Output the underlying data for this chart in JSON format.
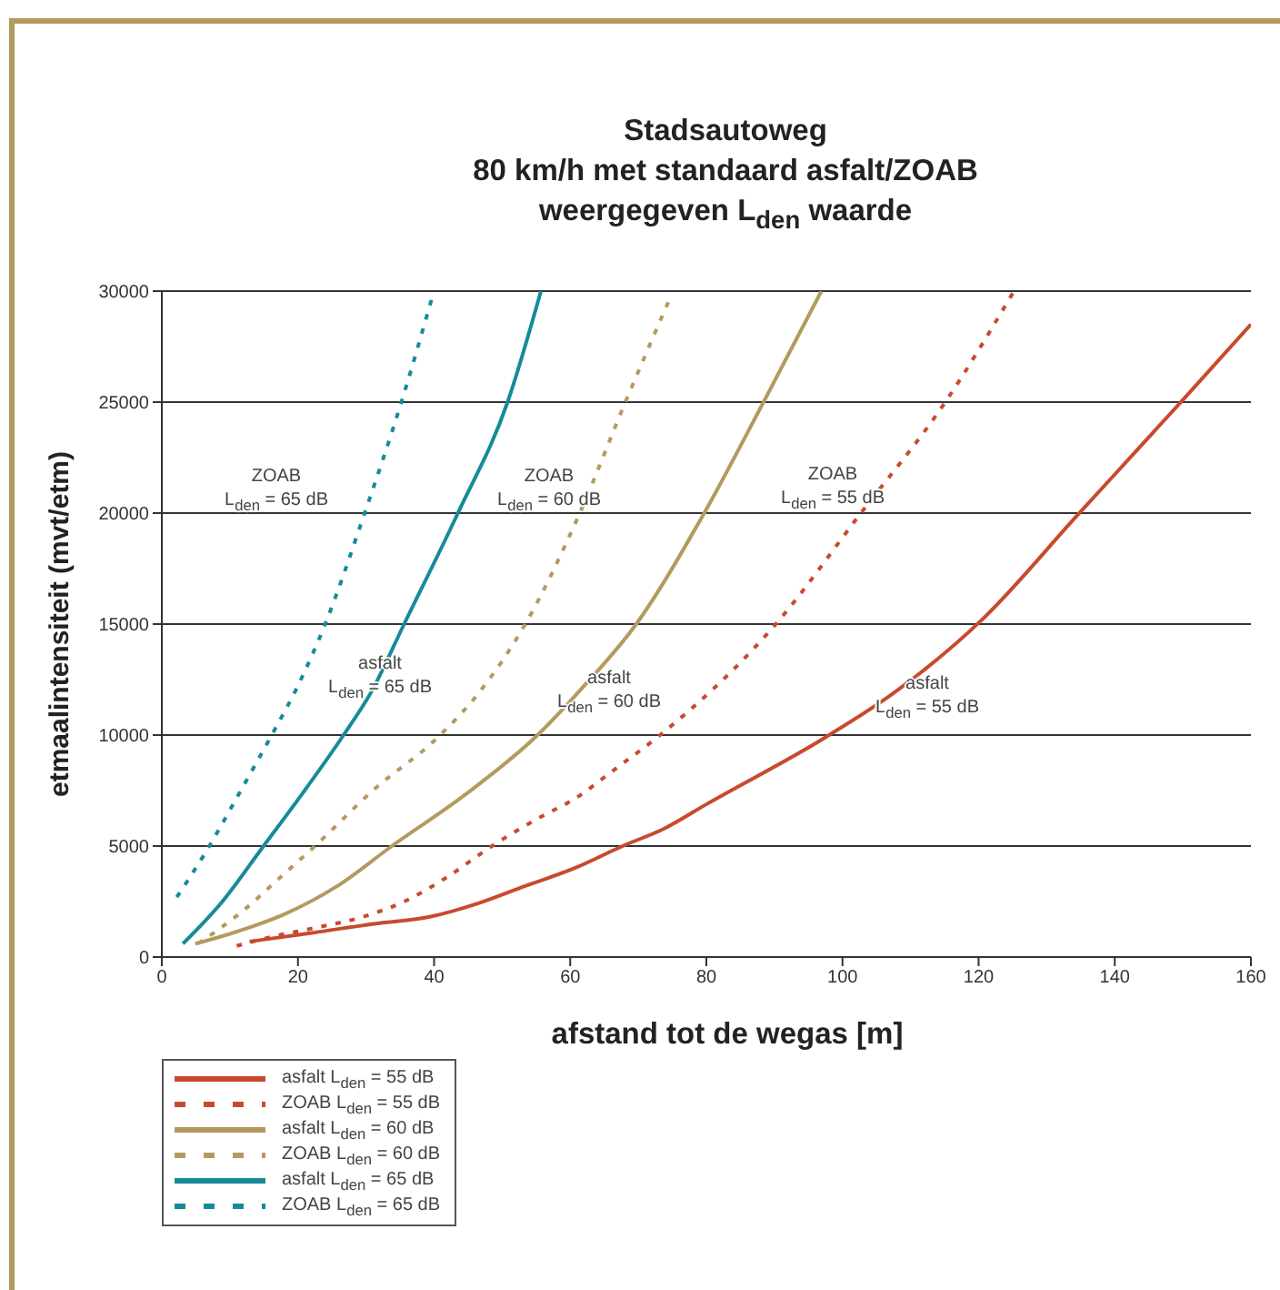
{
  "chart_data": {
    "type": "line",
    "title": "Stadsautoweg\n80 km/h met standaard asfalt/ZOAB\nweergegeven L$_{den}$ waarde",
    "xlabel": "afstand tot de wegas [m]",
    "ylabel": "etmaalintensiteit (mvt/etm)",
    "xlim": [
      0,
      160
    ],
    "xticks": [
      0,
      20,
      40,
      60,
      80,
      100,
      120,
      140,
      160
    ],
    "ylim": [
      0,
      30000
    ],
    "yticks": [
      0,
      5000,
      10000,
      15000,
      20000,
      25000,
      30000
    ],
    "grid": "y",
    "legend": "bottom left",
    "series": [
      {
        "name": "asfalt L$_{den}$ = 55 dB",
        "color": "#c84a2e",
        "line_style": "solid",
        "x": [
          12.9,
          22.3,
          31.2,
          39.2,
          46.3,
          53.4,
          60.6,
          67.7,
          73.9,
          80.1,
          97.5,
          108,
          120.5,
          134.5,
          150,
          160
        ],
        "values": [
          700,
          1100,
          1500,
          1800,
          2400,
          3200,
          4000,
          5000,
          5800,
          6900,
          9900,
          12000,
          15200,
          19900,
          25100,
          28500
        ]
      },
      {
        "name": "ZOAB L$_{den}$ = 55 dB",
        "color": "#c84a2e",
        "line_style": "dashed",
        "x": [
          11,
          16,
          22.3,
          29.4,
          35.6,
          41.9,
          48.5,
          55,
          61,
          66.3,
          73.2,
          90.2,
          102.7,
          115.1,
          125
        ],
        "values": [
          500,
          900,
          1300,
          1800,
          2500,
          3600,
          5000,
          6200,
          7200,
          8400,
          10000,
          15000,
          20000,
          25000,
          29900
        ]
      },
      {
        "name": "asfalt L$_{den}$ = 60 dB",
        "color": "#b39a5e",
        "line_style": "solid",
        "x": [
          4.9,
          11.6,
          17.8,
          25.8,
          33.8,
          44.5,
          55.2,
          61.4,
          69.7,
          79.5,
          88.4,
          96.9
        ],
        "values": [
          600,
          1200,
          1900,
          3200,
          5000,
          7300,
          10000,
          12000,
          15000,
          19900,
          25000,
          30000
        ]
      },
      {
        "name": "ZOAB L$_{den}$ = 60 dB",
        "color": "#b39a5e",
        "line_style": "dashed",
        "x": [
          5.3,
          11.6,
          17.8,
          22.5,
          31,
          40.9,
          46.3,
          53.4,
          61.4,
          68.1,
          74.4
        ],
        "values": [
          600,
          2000,
          3700,
          5000,
          7500,
          10000,
          11800,
          15000,
          20000,
          25000,
          29500
        ]
      },
      {
        "name": "asfalt L$_{den}$ = 65 dB",
        "color": "#158b99",
        "line_style": "solid",
        "x": [
          3.1,
          8.9,
          14.7,
          20.5,
          26.7,
          30.7,
          35.6,
          43.5,
          50.8,
          55.7
        ],
        "values": [
          600,
          2500,
          4900,
          7300,
          10000,
          11900,
          15000,
          20000,
          25000,
          30000
        ]
      },
      {
        "name": "ZOAB L$_{den}$ = 65 dB",
        "color": "#158b99",
        "line_style": "dashed",
        "x": [
          2.2,
          6.2,
          11.6,
          16.5,
          19.8,
          24,
          29.8,
          35.2,
          39.6
        ],
        "values": [
          2700,
          4600,
          7500,
          10200,
          12100,
          15000,
          20000,
          25000,
          29600
        ]
      }
    ],
    "annotations": [
      "ZOAB\nL$_{den}$ = 65 dB",
      "ZOAB\nL$_{den}$ = 60 dB",
      "ZOAB\nL$_{den}$ = 55 dB",
      "asfalt\nL$_{den}$ = 65 dB",
      "asfalt\nL$_{den}$ = 60 dB",
      "asfalt\nL$_{den}$ = 55 dB"
    ]
  }
}
